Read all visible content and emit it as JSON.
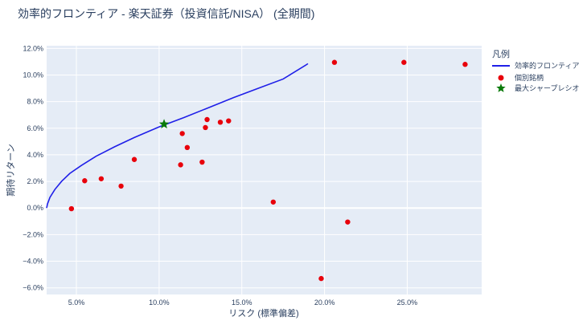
{
  "chart_data": {
    "type": "scatter",
    "title": "効率的フロンティア - 楽天証券（投資信託/NISA） (全期間)",
    "xlabel": "リスク (標準偏差)",
    "ylabel": "期待リターン",
    "xlim": [
      3.2,
      29.5
    ],
    "ylim": [
      -6.5,
      12.2
    ],
    "x_ticks": [
      5,
      10,
      15,
      20,
      25
    ],
    "x_tick_labels": [
      "5.0%",
      "10.0%",
      "15.0%",
      "20.0%",
      "25.0%"
    ],
    "y_ticks": [
      -6,
      -4,
      -2,
      0,
      2,
      4,
      6,
      8,
      10,
      12
    ],
    "y_tick_labels": [
      "−6.0%",
      "−4.0%",
      "−2.0%",
      "0.0%",
      "2.0%",
      "4.0%",
      "6.0%",
      "8.0%",
      "10.0%",
      "12.0%"
    ],
    "grid": true,
    "legend_position": "right",
    "legend_title": "凡例",
    "series": [
      {
        "name": "効率的フロンティア",
        "mode": "line",
        "color": "#1f1fe8",
        "x": [
          3.2,
          3.25,
          3.4,
          3.7,
          4.1,
          4.6,
          5.3,
          6.2,
          7.3,
          8.5,
          10.0,
          11.5,
          13.0,
          14.5,
          16.0,
          17.5,
          19.0
        ],
        "y": [
          0.0,
          0.3,
          0.8,
          1.4,
          2.0,
          2.6,
          3.2,
          3.9,
          4.6,
          5.3,
          6.1,
          6.8,
          7.55,
          8.3,
          9.0,
          9.7,
          10.85
        ]
      },
      {
        "name": "個別銘柄",
        "mode": "markers",
        "color": "#e8000b",
        "x": [
          4.7,
          5.5,
          6.5,
          7.7,
          8.5,
          11.3,
          11.4,
          11.7,
          12.6,
          12.8,
          12.9,
          13.7,
          14.2,
          16.9,
          19.8,
          20.6,
          21.4,
          24.8,
          28.5
        ],
        "y": [
          -0.05,
          2.05,
          2.2,
          1.65,
          3.65,
          3.25,
          5.6,
          4.55,
          3.45,
          6.05,
          6.65,
          6.45,
          6.55,
          0.45,
          -5.3,
          10.95,
          -1.05,
          10.95,
          10.8
        ]
      },
      {
        "name": "最大シャープレシオ",
        "mode": "star",
        "color": "#0a7a0a",
        "x": [
          10.3
        ],
        "y": [
          6.3
        ]
      }
    ]
  }
}
